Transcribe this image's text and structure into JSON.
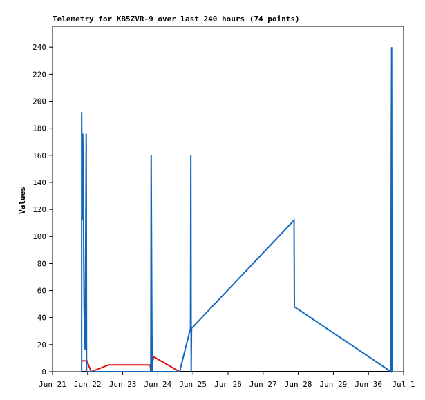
{
  "chart_data": {
    "type": "line",
    "title": "Telemetry for KB5ZVR-9 over last 240 hours (74 points)",
    "y_label": "Values",
    "xlim": [
      21,
      31
    ],
    "ylim": [
      0,
      259
    ],
    "xticks": [
      {
        "value": 21,
        "label": "Jun 21"
      },
      {
        "value": 22,
        "label": "Jun 22"
      },
      {
        "value": 23,
        "label": "Jun 23"
      },
      {
        "value": 24,
        "label": "Jun 24"
      },
      {
        "value": 25,
        "label": "Jun 25"
      },
      {
        "value": 26,
        "label": "Jun 26"
      },
      {
        "value": 27,
        "label": "Jun 27"
      },
      {
        "value": 28,
        "label": "Jun 28"
      },
      {
        "value": 29,
        "label": "Jun 29"
      },
      {
        "value": 30,
        "label": "Jun 30"
      },
      {
        "value": 31,
        "label": "Jul 1"
      }
    ],
    "yticks": [
      0,
      20,
      40,
      60,
      80,
      100,
      120,
      140,
      160,
      180,
      200,
      220,
      240
    ],
    "series": [
      {
        "color": "#000000",
        "x": [
          21.83,
          30.65
        ],
        "values": [
          0,
          0
        ]
      },
      {
        "color": "#dd1111",
        "x": [
          21.83,
          21.98,
          22.1,
          22.6,
          23.78,
          23.8,
          23.88,
          24.62
        ],
        "values": [
          8,
          8,
          0,
          5,
          5,
          0,
          11,
          0
        ]
      },
      {
        "color": "#1166bb",
        "x": [
          21.83,
          21.83,
          21.85,
          21.86,
          21.88,
          21.89,
          21.9,
          21.91,
          21.93,
          21.96,
          21.97,
          23.8,
          23.81,
          23.83,
          23.84,
          24.62,
          24.93,
          24.94,
          24.95,
          24.96,
          27.88,
          27.89,
          30.64,
          30.65,
          30.66,
          30.67
        ],
        "values": [
          0,
          192,
          112,
          176,
          144,
          80,
          48,
          32,
          16,
          176,
          0,
          0,
          160,
          40,
          0,
          0,
          32,
          160,
          0,
          32,
          112,
          48,
          0,
          168,
          240,
          0
        ]
      }
    ]
  }
}
